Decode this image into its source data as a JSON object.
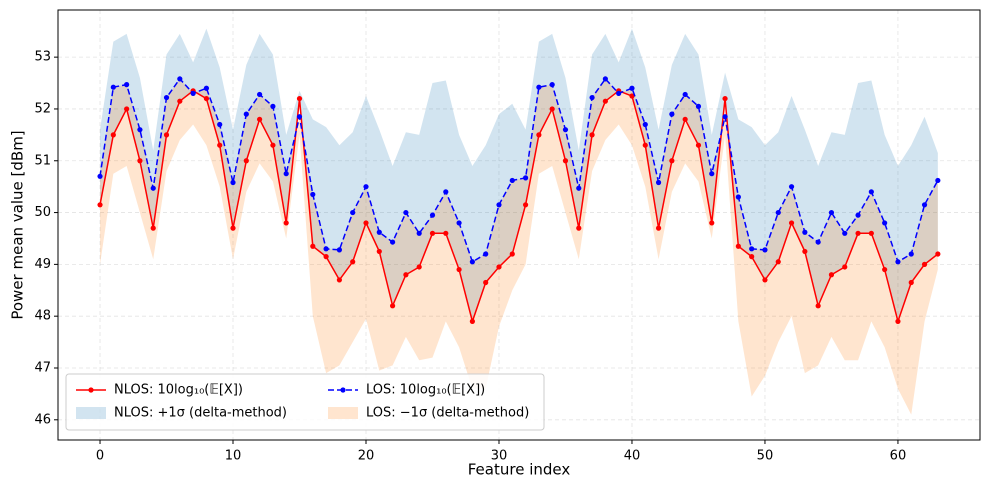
{
  "chart_data": {
    "type": "line",
    "xlabel": "Feature index",
    "ylabel": "Power mean value [dBm]",
    "x": [
      0,
      1,
      2,
      3,
      4,
      5,
      6,
      7,
      8,
      9,
      10,
      11,
      12,
      13,
      14,
      15,
      16,
      17,
      18,
      19,
      20,
      21,
      22,
      23,
      24,
      25,
      26,
      27,
      28,
      29,
      30,
      31,
      32,
      33,
      34,
      35,
      36,
      37,
      38,
      39,
      40,
      41,
      42,
      43,
      44,
      45,
      46,
      47,
      48,
      49,
      50,
      51,
      52,
      53,
      54,
      55,
      56,
      57,
      58,
      59,
      60,
      61,
      62,
      63
    ],
    "series": [
      {
        "name": "NLOS: 10log₁₀(𝔼[X])",
        "color": "#ff0000",
        "linestyle": "solid",
        "values": [
          50.15,
          51.5,
          52.0,
          51.0,
          49.7,
          51.5,
          52.15,
          52.35,
          52.2,
          51.3,
          49.7,
          51.0,
          51.8,
          51.3,
          49.8,
          52.2,
          49.35,
          49.15,
          48.7,
          49.05,
          49.8,
          49.25,
          48.2,
          48.8,
          48.95,
          49.6,
          49.6,
          48.9,
          47.9,
          48.65,
          48.95,
          49.2,
          50.15,
          51.5,
          52.0,
          51.0,
          49.7,
          51.5,
          52.15,
          52.35,
          52.25,
          51.3,
          49.7,
          51.0,
          51.8,
          51.3,
          49.8,
          52.2,
          49.35,
          49.15,
          48.7,
          49.05,
          49.8,
          49.25,
          48.2,
          48.8,
          48.95,
          49.6,
          49.6,
          48.9,
          47.9,
          48.65,
          49.0,
          49.2
        ]
      },
      {
        "name": "LOS: 10log₁₀(𝔼[X])",
        "color": "#0000ff",
        "linestyle": "dashed",
        "values": [
          50.7,
          52.42,
          52.47,
          51.6,
          50.47,
          52.22,
          52.58,
          52.3,
          52.4,
          51.7,
          50.58,
          51.9,
          52.28,
          52.05,
          50.75,
          51.85,
          50.35,
          49.3,
          49.28,
          50.0,
          50.5,
          49.62,
          49.43,
          50.0,
          49.6,
          49.95,
          50.4,
          49.8,
          49.05,
          49.2,
          50.15,
          50.62,
          50.67,
          52.42,
          52.47,
          51.6,
          50.47,
          52.22,
          52.58,
          52.3,
          52.4,
          51.7,
          50.58,
          51.9,
          52.28,
          52.05,
          50.75,
          51.85,
          50.3,
          49.3,
          49.28,
          50.0,
          50.5,
          49.62,
          49.43,
          50.0,
          49.6,
          49.95,
          50.4,
          49.8,
          49.05,
          49.2,
          50.15,
          50.62
        ]
      }
    ],
    "bands": [
      {
        "name": "NLOS: +1σ (delta-method)",
        "color": "#1f77b4",
        "values": [
          51.6,
          53.3,
          53.45,
          52.6,
          51.2,
          53.05,
          53.45,
          52.9,
          53.55,
          52.8,
          51.6,
          52.85,
          53.45,
          53.05,
          51.5,
          52.35,
          51.8,
          51.65,
          51.3,
          51.55,
          52.25,
          51.6,
          50.9,
          51.55,
          51.5,
          52.5,
          52.55,
          51.5,
          50.9,
          51.3,
          51.9,
          52.1,
          51.6,
          53.3,
          53.45,
          52.6,
          51.2,
          53.05,
          53.45,
          52.9,
          53.55,
          52.8,
          51.6,
          52.85,
          53.45,
          53.05,
          51.5,
          52.7,
          51.8,
          51.65,
          51.3,
          51.55,
          52.25,
          51.6,
          50.9,
          51.55,
          51.5,
          52.5,
          52.55,
          51.5,
          50.9,
          51.3,
          51.85,
          51.15
        ]
      },
      {
        "name": "LOS: −1σ (delta-method)",
        "color": "#ff7f0e",
        "values": [
          49.0,
          50.75,
          50.9,
          50.0,
          49.1,
          50.8,
          51.4,
          51.7,
          51.3,
          50.5,
          49.1,
          50.4,
          50.95,
          50.6,
          49.5,
          51.5,
          48.0,
          46.9,
          47.05,
          47.5,
          47.95,
          46.95,
          47.05,
          47.6,
          47.15,
          47.2,
          47.9,
          47.4,
          46.6,
          46.6,
          47.8,
          48.5,
          49.0,
          50.75,
          50.9,
          50.0,
          49.1,
          50.8,
          51.4,
          51.7,
          51.3,
          50.5,
          49.1,
          50.4,
          50.95,
          50.6,
          49.5,
          51.5,
          47.9,
          46.45,
          46.85,
          47.5,
          48.0,
          46.9,
          47.05,
          47.6,
          47.15,
          47.15,
          47.9,
          47.4,
          46.6,
          46.1,
          47.9,
          48.9
        ]
      }
    ],
    "xlim": [
      -3.16,
      66.17
    ],
    "ylim": [
      45.61,
      53.91
    ],
    "xticks": [
      0,
      10,
      20,
      30,
      40,
      50,
      60
    ],
    "yticks": [
      46,
      47,
      48,
      49,
      50,
      51,
      52,
      53
    ],
    "grid": true,
    "legend": "lower left"
  }
}
